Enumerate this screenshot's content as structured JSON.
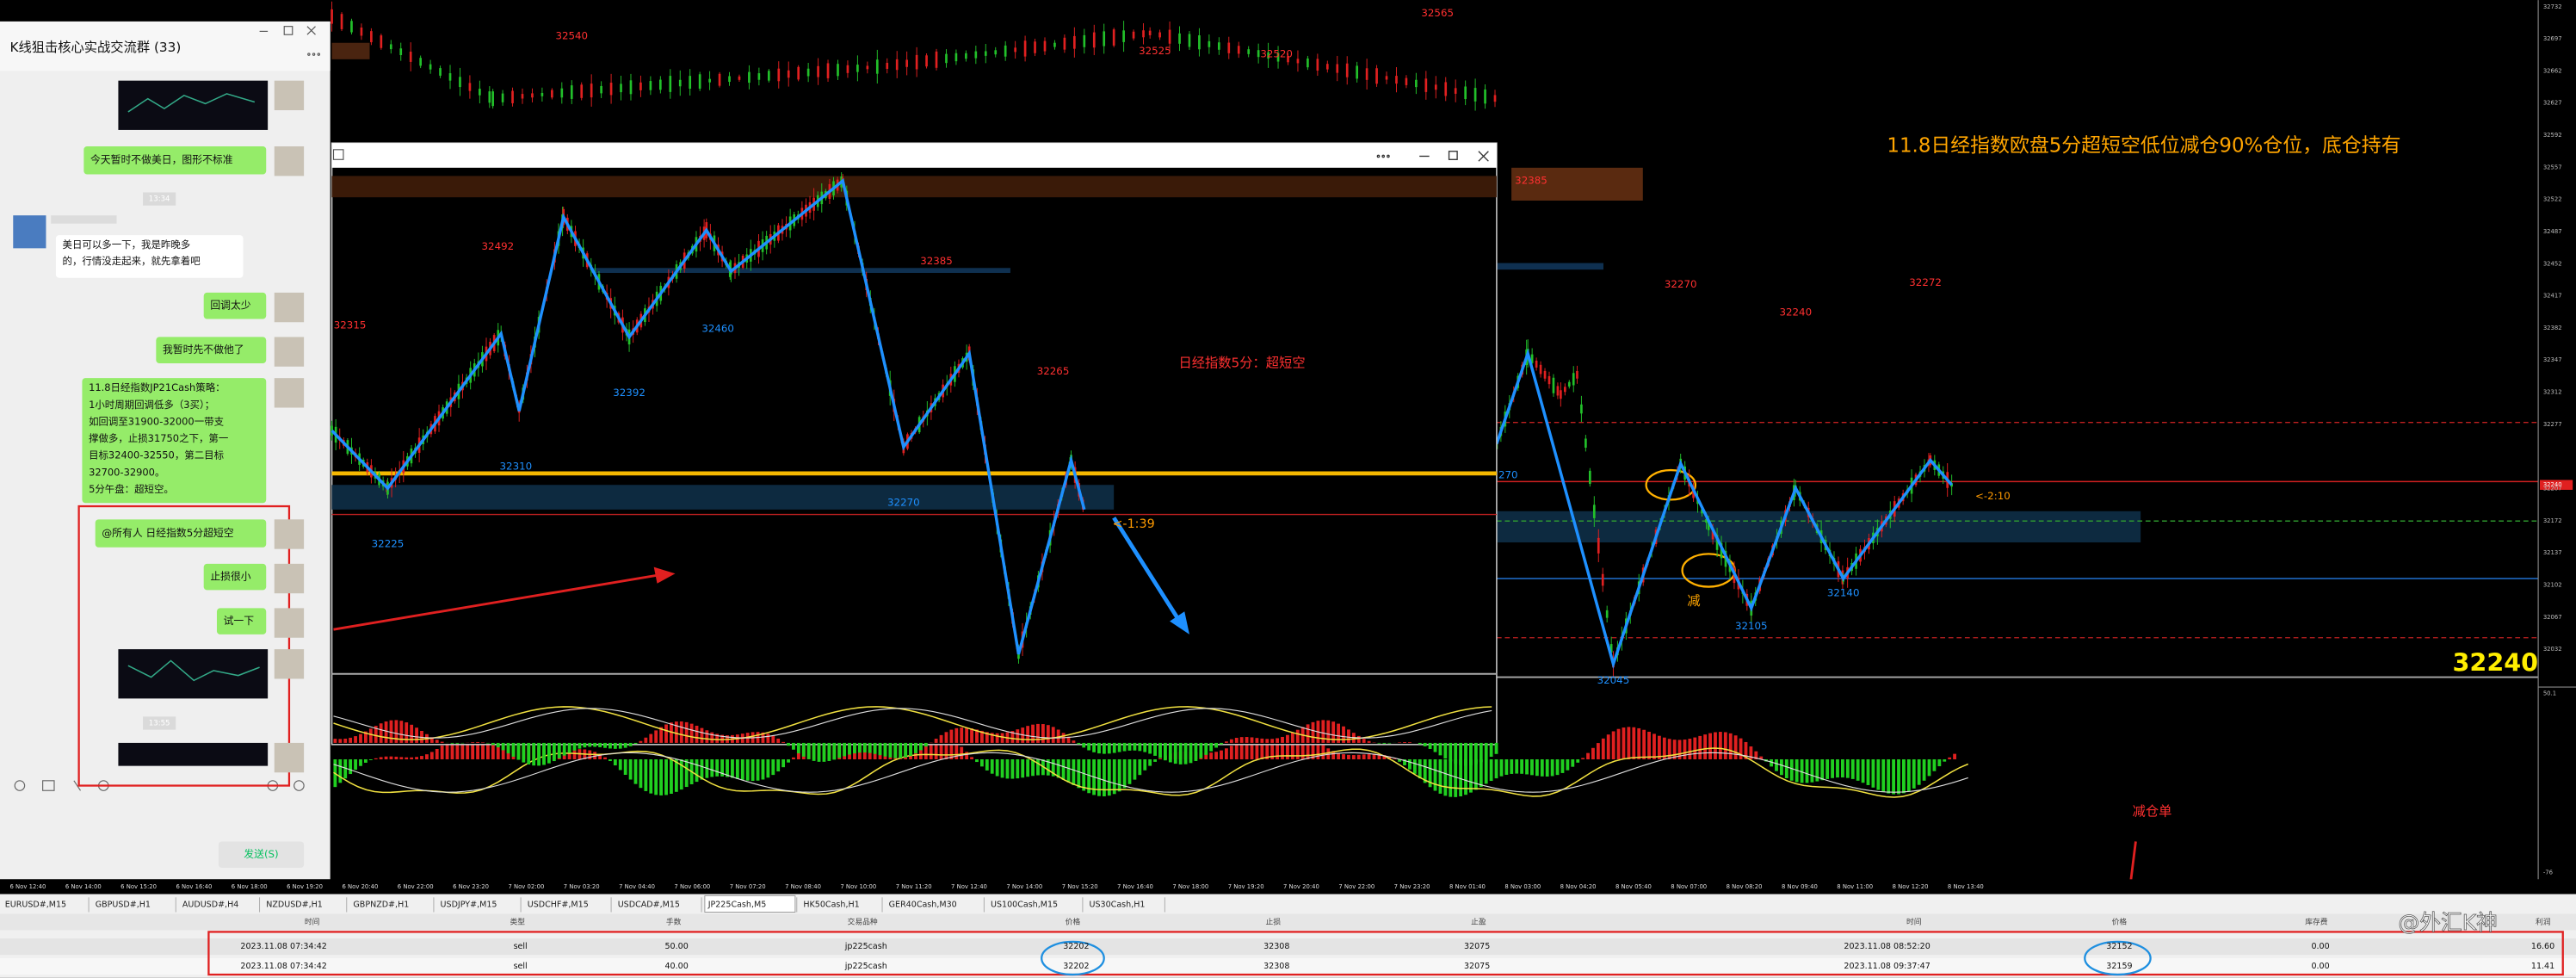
{
  "chat": {
    "title": "K线狙击核心实战交流群 (33)",
    "messages": [
      "今天暂时不做美日，图形不标准",
      [
        "美日可以多一下，我是昨晚多",
        "的，行情没走起来，就先拿着吧"
      ],
      "回调太少",
      "我暂时先不做他了",
      [
        "11.8日经指数JP21Cash策略：",
        "1小时周期回调低多（3买）；",
        "如回调至31900-32000一带支",
        "撑做多，止损31750之下，第一",
        "目标32400-32550，第二目标",
        "32700-32900。",
        "5分午盘：超短空。"
      ],
      "@所有人 日经指数5分超短空",
      "止损很小",
      "试一下"
    ],
    "times": [
      "13:34",
      "13:55"
    ],
    "send": "发送(S)"
  },
  "chart": {
    "headline": "11.8日经指数欧盘5分超短空低位减仓90%仓位，底仓持有",
    "labels": [
      "32540",
      "32565",
      "32525",
      "32520",
      "32385",
      "32270",
      "32240",
      "32272",
      "32105",
      "32140",
      "32045",
      "270",
      "减",
      "<-2:10",
      "减仓单"
    ],
    "current_price": "32240",
    "inner": {
      "title": "日经指数5分：超短空",
      "labels": [
        "32492",
        "32315",
        "32460",
        "32392",
        "32385",
        "32265",
        "32310",
        "32270",
        "32225",
        "<-1:39"
      ]
    },
    "price_axis": [
      "32732",
      "32697",
      "32662",
      "32627",
      "32592",
      "32557",
      "32522",
      "32487",
      "32452",
      "32417",
      "32382",
      "32347",
      "32312",
      "32277",
      "32240",
      "32207",
      "32172",
      "32137",
      "32102",
      "32067",
      "32032"
    ],
    "indicator_axis": [
      "50.1",
      "-76"
    ],
    "time_axis": [
      "6 Nov 12:40",
      "6 Nov 14:00",
      "6 Nov 15:20",
      "6 Nov 16:40",
      "6 Nov 18:00",
      "6 Nov 19:20",
      "6 Nov 20:40",
      "6 Nov 22:00",
      "6 Nov 23:20",
      "7 Nov 02:00",
      "7 Nov 03:20",
      "7 Nov 04:40",
      "7 Nov 06:00",
      "7 Nov 07:20",
      "7 Nov 08:40",
      "7 Nov 10:00",
      "7 Nov 11:20",
      "7 Nov 12:40",
      "7 Nov 14:00",
      "7 Nov 15:20",
      "7 Nov 16:40",
      "7 Nov 18:00",
      "7 Nov 19:20",
      "7 Nov 20:40",
      "7 Nov 22:00",
      "7 Nov 23:20",
      "8 Nov 01:40",
      "8 Nov 03:00",
      "8 Nov 04:20",
      "8 Nov 05:40",
      "8 Nov 07:00",
      "8 Nov 08:20",
      "8 Nov 09:40",
      "8 Nov 11:00",
      "8 Nov 12:20",
      "8 Nov 13:40"
    ]
  },
  "tabs": [
    "EURUSD#,M15",
    "GBPUSD#,H1",
    "AUDUSD#,H4",
    "NZDUSD#,H1",
    "GBPNZD#,H1",
    "USDJPY#,M15",
    "USDCHF#,M15",
    "USDCAD#,M15",
    "JP225Cash,M5",
    "HK50Cash,H1",
    "GER40Cash,M30",
    "US100Cash,M15",
    "US30Cash,H1"
  ],
  "table": {
    "header": [
      "时间",
      "类型",
      "手数",
      "交易品种",
      "价格",
      "止损",
      "止盈",
      "时间",
      "价格",
      "库存费",
      "利润"
    ],
    "rows": [
      [
        "2023.11.08 07:34:42",
        "sell",
        "50.00",
        "jp225cash",
        "32202",
        "32308",
        "32075",
        "2023.11.08 08:52:20",
        "32152",
        "0.00",
        "16.60"
      ],
      [
        "2023.11.08 07:34:42",
        "sell",
        "40.00",
        "jp225cash",
        "32202",
        "32308",
        "32075",
        "2023.11.08 09:37:47",
        "32159",
        "0.00",
        "11.41"
      ]
    ]
  },
  "watermark": "@外汇K神"
}
